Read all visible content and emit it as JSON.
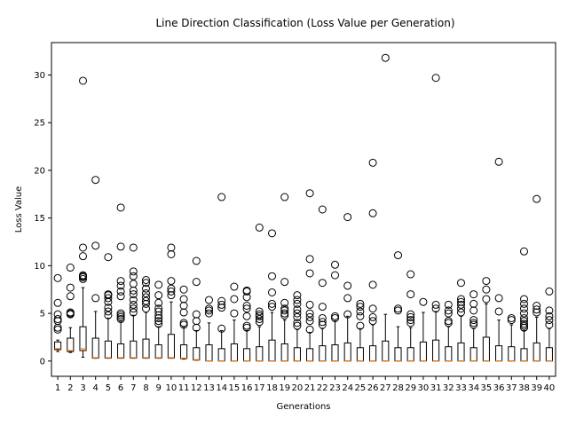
{
  "chart_data": {
    "type": "box",
    "title": "Line Direction Classification (Loss Value per Generation)",
    "xlabel": "Generations",
    "ylabel": "Loss Value",
    "ylim": [
      -1.6,
      33.4
    ],
    "y_ticks": [
      0,
      5,
      10,
      15,
      20,
      25,
      30
    ],
    "grid": false,
    "legend": "none",
    "colors": {
      "box": "#000000",
      "median": "#ff7f0e",
      "flier": "#000000"
    },
    "categories": [
      "1",
      "2",
      "3",
      "4",
      "5",
      "6",
      "7",
      "8",
      "9",
      "10",
      "11",
      "12",
      "13",
      "14",
      "15",
      "16",
      "17",
      "18",
      "19",
      "20",
      "21",
      "22",
      "23",
      "24",
      "25",
      "26",
      "27",
      "28",
      "29",
      "30",
      "31",
      "32",
      "33",
      "34",
      "35",
      "36",
      "37",
      "38",
      "39",
      "40"
    ],
    "boxes": [
      {
        "whislo": 1.0,
        "q1": 1.2,
        "med": 1.3,
        "q3": 2.0,
        "whishi": 2.2,
        "fliers": [
          3.3,
          3.5,
          4.2,
          4.4,
          4.9,
          6.1,
          8.7
        ]
      },
      {
        "whislo": 0.9,
        "q1": 1.0,
        "med": 1.1,
        "q3": 2.4,
        "whishi": 3.5,
        "fliers": [
          4.9,
          5.0,
          5.1,
          6.8,
          7.7,
          9.8
        ]
      },
      {
        "whislo": 0.4,
        "q1": 1.1,
        "med": 1.3,
        "q3": 3.6,
        "whishi": 7.7,
        "fliers": [
          8.6,
          8.8,
          8.9,
          9.0,
          11.0,
          11.9,
          29.4
        ]
      },
      {
        "whislo": 0.3,
        "q1": 0.3,
        "med": 0.35,
        "q3": 2.4,
        "whishi": 5.2,
        "fliers": [
          6.6,
          12.1,
          19.0
        ]
      },
      {
        "whislo": 0.3,
        "q1": 0.3,
        "med": 0.35,
        "q3": 2.1,
        "whishi": 4.5,
        "fliers": [
          4.8,
          5.2,
          5.6,
          6.2,
          6.6,
          6.9,
          7.0,
          10.9
        ]
      },
      {
        "whislo": 0.3,
        "q1": 0.3,
        "med": 0.35,
        "q3": 1.8,
        "whishi": 4.2,
        "fliers": [
          4.4,
          4.6,
          4.8,
          5.0,
          6.8,
          7.3,
          7.9,
          8.4,
          12.0,
          16.1
        ]
      },
      {
        "whislo": 0.3,
        "q1": 0.3,
        "med": 0.35,
        "q3": 2.1,
        "whishi": 4.8,
        "fliers": [
          5.1,
          5.5,
          5.9,
          6.4,
          7.0,
          7.4,
          8.1,
          8.9,
          9.4,
          11.9
        ]
      },
      {
        "whislo": 0.3,
        "q1": 0.3,
        "med": 0.35,
        "q3": 2.3,
        "whishi": 5.1,
        "fliers": [
          5.5,
          6.0,
          6.3,
          6.7,
          7.1,
          7.6,
          8.2,
          8.5
        ]
      },
      {
        "whislo": 0.3,
        "q1": 0.3,
        "med": 0.35,
        "q3": 1.7,
        "whishi": 3.6,
        "fliers": [
          3.9,
          4.2,
          4.5,
          4.8,
          5.2,
          5.5,
          6.1,
          6.9,
          8.0
        ]
      },
      {
        "whislo": 0.3,
        "q1": 0.3,
        "med": 0.35,
        "q3": 2.8,
        "whishi": 6.2,
        "fliers": [
          6.9,
          7.3,
          7.6,
          8.4,
          11.2,
          11.9
        ]
      },
      {
        "whislo": 0.2,
        "q1": 0.25,
        "med": 0.3,
        "q3": 1.7,
        "whishi": 3.6,
        "fliers": [
          3.8,
          4.0,
          5.1,
          5.8,
          6.5,
          7.5
        ]
      },
      {
        "whislo": 0.1,
        "q1": 0.1,
        "med": 0.15,
        "q3": 1.4,
        "whishi": 3.2,
        "fliers": [
          3.5,
          4.2,
          4.9,
          8.3,
          10.5
        ]
      },
      {
        "whislo": 0.0,
        "q1": 0.0,
        "med": 0.0,
        "q3": 1.7,
        "whishi": 4.0,
        "fliers": [
          5.0,
          5.3,
          5.5,
          6.4
        ]
      },
      {
        "whislo": 0.0,
        "q1": 0.0,
        "med": 0.0,
        "q3": 1.3,
        "whishi": 3.2,
        "fliers": [
          3.4,
          5.6,
          5.9,
          6.3,
          17.2
        ]
      },
      {
        "whislo": 0.0,
        "q1": 0.0,
        "med": 0.0,
        "q3": 1.8,
        "whishi": 4.3,
        "fliers": [
          5.0,
          6.5,
          7.8
        ]
      },
      {
        "whislo": 0.0,
        "q1": 0.0,
        "med": 0.0,
        "q3": 1.3,
        "whishi": 3.2,
        "fliers": [
          3.5,
          3.7,
          4.7,
          5.5,
          5.8,
          6.7,
          7.3,
          7.4
        ]
      },
      {
        "whislo": 0.0,
        "q1": 0.0,
        "med": 0.0,
        "q3": 1.5,
        "whishi": 3.6,
        "fliers": [
          4.1,
          4.4,
          4.7,
          4.9,
          5.2,
          14.0
        ]
      },
      {
        "whislo": 0.0,
        "q1": 0.0,
        "med": 0.0,
        "q3": 2.2,
        "whishi": 5.1,
        "fliers": [
          5.7,
          6.0,
          7.2,
          8.9,
          13.4
        ]
      },
      {
        "whislo": 0.0,
        "q1": 0.0,
        "med": 0.0,
        "q3": 1.8,
        "whishi": 4.3,
        "fliers": [
          4.8,
          5.0,
          5.3,
          5.5,
          6.1,
          8.3,
          17.2
        ]
      },
      {
        "whislo": 0.0,
        "q1": 0.0,
        "med": 0.0,
        "q3": 1.4,
        "whishi": 3.3,
        "fliers": [
          3.7,
          4.0,
          4.6,
          5.0,
          5.4,
          6.0,
          6.4,
          6.9
        ]
      },
      {
        "whislo": 0.0,
        "q1": 0.0,
        "med": 0.0,
        "q3": 1.3,
        "whishi": 3.0,
        "fliers": [
          3.3,
          4.2,
          4.6,
          5.0,
          5.9,
          9.2,
          10.7,
          17.6
        ]
      },
      {
        "whislo": 0.0,
        "q1": 0.0,
        "med": 0.0,
        "q3": 1.6,
        "whishi": 3.4,
        "fliers": [
          3.8,
          4.1,
          4.5,
          5.7,
          8.2,
          15.9
        ]
      },
      {
        "whislo": 0.0,
        "q1": 0.0,
        "med": 0.0,
        "q3": 1.7,
        "whishi": 4.2,
        "fliers": [
          4.5,
          4.7,
          9.0,
          10.1
        ]
      },
      {
        "whislo": 0.0,
        "q1": 0.0,
        "med": 0.0,
        "q3": 1.9,
        "whishi": 4.7,
        "fliers": [
          4.9,
          6.6,
          7.9,
          15.1
        ]
      },
      {
        "whislo": 0.0,
        "q1": 0.0,
        "med": 0.0,
        "q3": 1.4,
        "whishi": 3.4,
        "fliers": [
          3.7,
          4.7,
          5.2,
          5.7,
          6.0
        ]
      },
      {
        "whislo": 0.0,
        "q1": 0.0,
        "med": 0.0,
        "q3": 1.6,
        "whishi": 3.8,
        "fliers": [
          4.2,
          4.6,
          5.5,
          8.0,
          15.5,
          20.8
        ]
      },
      {
        "whislo": 0.0,
        "q1": 0.0,
        "med": 0.0,
        "q3": 2.1,
        "whishi": 4.9,
        "fliers": [
          31.8
        ]
      },
      {
        "whislo": 0.0,
        "q1": 0.0,
        "med": 0.0,
        "q3": 1.4,
        "whishi": 3.6,
        "fliers": [
          5.3,
          5.5,
          11.1
        ]
      },
      {
        "whislo": 0.0,
        "q1": 0.0,
        "med": 0.0,
        "q3": 1.4,
        "whishi": 3.5,
        "fliers": [
          4.0,
          4.3,
          4.6,
          4.9,
          7.0,
          9.1
        ]
      },
      {
        "whislo": 0.0,
        "q1": 0.0,
        "med": 0.0,
        "q3": 2.0,
        "whishi": 5.1,
        "fliers": [
          6.2
        ]
      },
      {
        "whislo": 0.0,
        "q1": 0.0,
        "med": 0.0,
        "q3": 2.2,
        "whishi": 5.2,
        "fliers": [
          5.5,
          5.9,
          29.7
        ]
      },
      {
        "whislo": 0.0,
        "q1": 0.0,
        "med": 0.0,
        "q3": 1.5,
        "whishi": 3.6,
        "fliers": [
          4.0,
          4.2,
          5.0,
          5.3,
          5.9
        ]
      },
      {
        "whislo": 0.0,
        "q1": 0.0,
        "med": 0.0,
        "q3": 1.9,
        "whishi": 4.7,
        "fliers": [
          5.1,
          5.5,
          5.9,
          6.2,
          6.5,
          8.2
        ]
      },
      {
        "whislo": 0.0,
        "q1": 0.0,
        "med": 0.0,
        "q3": 1.4,
        "whishi": 3.4,
        "fliers": [
          3.8,
          4.0,
          4.3,
          5.3,
          6.0,
          7.0
        ]
      },
      {
        "whislo": 0.0,
        "q1": 0.0,
        "med": 0.0,
        "q3": 2.5,
        "whishi": 6.0,
        "fliers": [
          6.5,
          7.5,
          8.4
        ]
      },
      {
        "whislo": 0.0,
        "q1": 0.0,
        "med": 0.0,
        "q3": 1.6,
        "whishi": 4.3,
        "fliers": [
          5.2,
          6.6,
          20.9
        ]
      },
      {
        "whislo": 0.0,
        "q1": 0.0,
        "med": 0.0,
        "q3": 1.5,
        "whishi": 3.8,
        "fliers": [
          4.3,
          4.5
        ]
      },
      {
        "whislo": 0.0,
        "q1": 0.0,
        "med": 0.0,
        "q3": 1.3,
        "whishi": 3.2,
        "fliers": [
          3.5,
          3.7,
          3.9,
          4.2,
          4.5,
          5.0,
          5.5,
          6.0,
          6.5,
          11.5
        ]
      },
      {
        "whislo": 0.0,
        "q1": 0.0,
        "med": 0.0,
        "q3": 1.9,
        "whishi": 4.6,
        "fliers": [
          5.1,
          5.4,
          5.8,
          17.0
        ]
      },
      {
        "whislo": 0.0,
        "q1": 0.0,
        "med": 0.0,
        "q3": 1.4,
        "whishi": 3.4,
        "fliers": [
          3.8,
          4.3,
          4.7,
          5.3,
          7.3
        ]
      }
    ]
  }
}
